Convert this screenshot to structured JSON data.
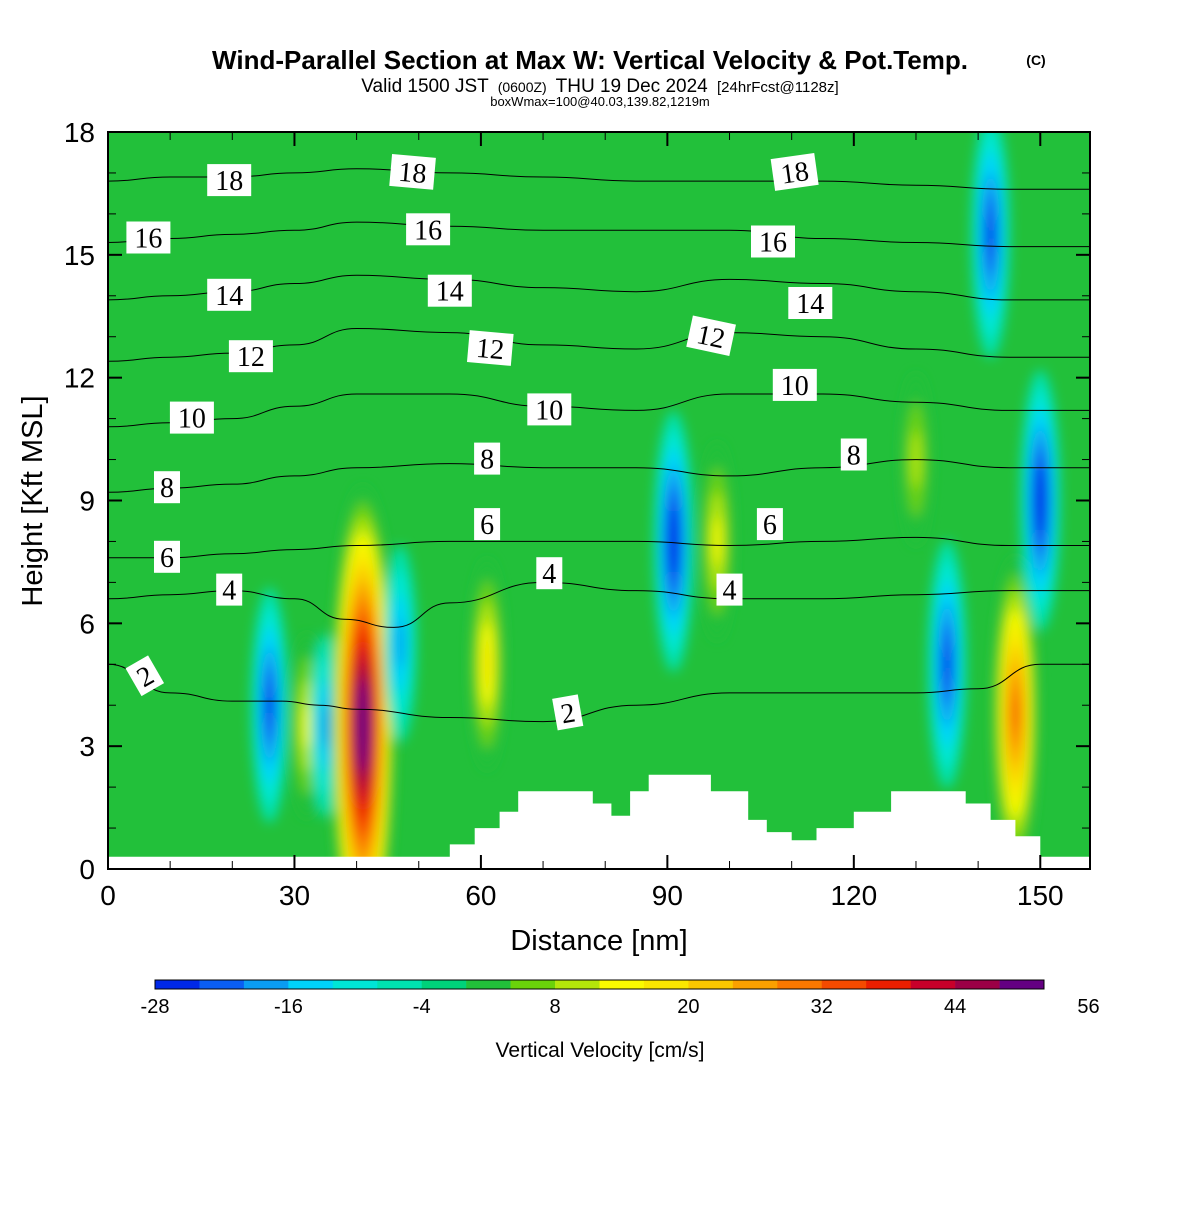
{
  "header": {
    "title": "Wind-Parallel Section at Max W: Vertical Velocity & Pot.Temp.",
    "copyright": "(C)",
    "valid_prefix": "Valid 1500 JST",
    "valid_utc": "(0600Z)",
    "valid_date": "THU 19 Dec 2024",
    "forecast": "[24hrFcst@1128z]",
    "boxwmax": "boxWmax=100@40.03,139.82,1219m"
  },
  "chart_data": {
    "type": "heatmap",
    "xlabel": "Distance [nm]",
    "ylabel": "Height [Kft MSL]",
    "xlim": [
      0,
      158
    ],
    "ylim": [
      0,
      18
    ],
    "xticks": [
      0,
      30,
      60,
      90,
      120,
      150
    ],
    "xtick_labels": [
      "0",
      "30",
      "60",
      "90",
      "120",
      "150"
    ],
    "yticks": [
      0,
      3,
      6,
      9,
      12,
      15,
      18
    ],
    "ytick_labels": [
      "0",
      "3",
      "6",
      "9",
      "12",
      "15",
      "18"
    ],
    "grid": false,
    "background_level_color": "#22c03a",
    "colorbar": {
      "label": "Vertical Velocity [cm/s]",
      "levels_min": -28,
      "levels_step": 4,
      "levels_count": 21,
      "tick_values": [
        -28,
        -16,
        -4,
        8,
        20,
        32,
        44,
        56
      ],
      "tick_labels": [
        "-28",
        "-16",
        "-4",
        "8",
        "20",
        "32",
        "44",
        "56"
      ],
      "colors": [
        "#0028e8",
        "#0a5ef2",
        "#0a9cf2",
        "#00d2fa",
        "#00e6d6",
        "#00e2b0",
        "#00d27a",
        "#22c03a",
        "#6ad20a",
        "#b4e60a",
        "#fafa00",
        "#fae600",
        "#fac800",
        "#faa000",
        "#fa7800",
        "#f54a00",
        "#eb1e00",
        "#c8002a",
        "#9b0046",
        "#640082"
      ]
    },
    "vertical_velocity_features": [
      {
        "x": 26,
        "y": 4.0,
        "value": -18,
        "kind": "downdraft"
      },
      {
        "x": 32,
        "y": 3.5,
        "value": 10,
        "kind": "updraft"
      },
      {
        "x": 35,
        "y": 3.5,
        "value": -10,
        "kind": "downdraft"
      },
      {
        "x": 41,
        "y": 3.5,
        "value": 56,
        "kind": "updraft"
      },
      {
        "x": 47,
        "y": 5.5,
        "value": -12,
        "kind": "downdraft"
      },
      {
        "x": 61,
        "y": 5.0,
        "value": 14,
        "kind": "updraft"
      },
      {
        "x": 91,
        "y": 8.0,
        "value": -22,
        "kind": "downdraft"
      },
      {
        "x": 98,
        "y": 8.0,
        "value": 12,
        "kind": "updraft"
      },
      {
        "x": 142,
        "y": 15.5,
        "value": -20,
        "kind": "downdraft"
      },
      {
        "x": 135,
        "y": 5.0,
        "value": -20,
        "kind": "downdraft"
      },
      {
        "x": 146,
        "y": 3.8,
        "value": 30,
        "kind": "updraft"
      },
      {
        "x": 150,
        "y": 9.0,
        "value": -22,
        "kind": "downdraft"
      },
      {
        "x": 130,
        "y": 10.0,
        "value": 8,
        "kind": "updraft"
      }
    ],
    "terrain": {
      "x": [
        0,
        55,
        55,
        59,
        59,
        63,
        63,
        66,
        66,
        78,
        78,
        81,
        81,
        84,
        84,
        87,
        87,
        97,
        97,
        103,
        103,
        106,
        106,
        110,
        110,
        114,
        114,
        120,
        120,
        126,
        126,
        138,
        138,
        142,
        142,
        146,
        146,
        150,
        150,
        158
      ],
      "y": [
        0.3,
        0.3,
        0.6,
        0.6,
        1.0,
        1.0,
        1.4,
        1.4,
        1.9,
        1.9,
        1.6,
        1.6,
        1.3,
        1.3,
        1.9,
        1.9,
        2.3,
        2.3,
        1.9,
        1.9,
        1.2,
        1.2,
        0.9,
        0.9,
        0.7,
        0.7,
        1.0,
        1.0,
        1.4,
        1.4,
        1.9,
        1.9,
        1.6,
        1.6,
        1.2,
        1.2,
        0.8,
        0.8,
        0.3,
        0.3
      ]
    },
    "potential_temperature_contours": [
      {
        "label": "2",
        "x": [
          0,
          10,
          20,
          28,
          34,
          40,
          55,
          70,
          85,
          100,
          115,
          130,
          140,
          150,
          158
        ],
        "y": [
          5.0,
          4.3,
          4.1,
          4.1,
          4.0,
          3.9,
          3.7,
          3.6,
          4.0,
          4.3,
          4.3,
          4.3,
          4.4,
          5.0,
          5.0
        ]
      },
      {
        "label": "4",
        "x": [
          0,
          10,
          20,
          30,
          38,
          46,
          55,
          70,
          85,
          100,
          115,
          130,
          145,
          158
        ],
        "y": [
          6.6,
          6.7,
          6.8,
          6.6,
          6.1,
          5.9,
          6.5,
          7.0,
          6.8,
          6.6,
          6.6,
          6.7,
          6.8,
          6.8
        ]
      },
      {
        "label": "6",
        "x": [
          0,
          10,
          20,
          30,
          40,
          55,
          70,
          85,
          100,
          115,
          130,
          145,
          158
        ],
        "y": [
          7.6,
          7.6,
          7.7,
          7.8,
          7.9,
          8.0,
          8.0,
          8.0,
          7.9,
          8.0,
          8.1,
          7.9,
          7.9
        ]
      },
      {
        "label": "8",
        "x": [
          0,
          10,
          20,
          30,
          40,
          55,
          70,
          85,
          100,
          115,
          130,
          145,
          158
        ],
        "y": [
          9.2,
          9.3,
          9.4,
          9.6,
          9.8,
          9.9,
          9.8,
          9.8,
          9.6,
          9.8,
          10.0,
          9.8,
          9.8
        ]
      },
      {
        "label": "10",
        "x": [
          0,
          10,
          20,
          30,
          40,
          55,
          70,
          85,
          100,
          115,
          130,
          145,
          158
        ],
        "y": [
          10.8,
          10.9,
          11.0,
          11.3,
          11.6,
          11.6,
          11.3,
          11.2,
          11.6,
          11.6,
          11.4,
          11.2,
          11.2
        ]
      },
      {
        "label": "12",
        "x": [
          0,
          10,
          20,
          30,
          40,
          55,
          70,
          85,
          100,
          115,
          130,
          145,
          158
        ],
        "y": [
          12.4,
          12.5,
          12.6,
          12.8,
          13.2,
          13.1,
          12.8,
          12.7,
          13.1,
          13.0,
          12.7,
          12.5,
          12.5
        ]
      },
      {
        "label": "14",
        "x": [
          0,
          10,
          20,
          30,
          40,
          55,
          70,
          85,
          100,
          115,
          130,
          145,
          158
        ],
        "y": [
          13.9,
          14.0,
          14.1,
          14.3,
          14.5,
          14.4,
          14.2,
          14.1,
          14.4,
          14.3,
          14.1,
          13.9,
          13.9
        ]
      },
      {
        "label": "16",
        "x": [
          0,
          10,
          20,
          30,
          40,
          55,
          70,
          85,
          100,
          115,
          130,
          145,
          158
        ],
        "y": [
          15.3,
          15.4,
          15.5,
          15.6,
          15.8,
          15.7,
          15.6,
          15.6,
          15.6,
          15.4,
          15.3,
          15.2,
          15.2
        ]
      },
      {
        "label": "18",
        "x": [
          0,
          10,
          20,
          30,
          40,
          55,
          70,
          85,
          100,
          115,
          130,
          145,
          158
        ],
        "y": [
          16.8,
          16.9,
          16.9,
          17.0,
          17.1,
          17.0,
          16.9,
          16.8,
          16.8,
          16.8,
          16.7,
          16.6,
          16.6
        ]
      }
    ],
    "contour_labels": [
      {
        "text": "2",
        "x": 6,
        "y": 4.7,
        "angle": -30
      },
      {
        "text": "2",
        "x": 74,
        "y": 3.8,
        "angle": -10
      },
      {
        "text": "4",
        "x": 19.5,
        "y": 6.8,
        "angle": 0
      },
      {
        "text": "4",
        "x": 71,
        "y": 7.2,
        "angle": 0
      },
      {
        "text": "4",
        "x": 100,
        "y": 6.8,
        "angle": 0
      },
      {
        "text": "6",
        "x": 9.5,
        "y": 7.6,
        "angle": 0
      },
      {
        "text": "6",
        "x": 61,
        "y": 8.4,
        "angle": 0
      },
      {
        "text": "6",
        "x": 106.5,
        "y": 8.4,
        "angle": 0
      },
      {
        "text": "8",
        "x": 9.5,
        "y": 9.3,
        "angle": 0
      },
      {
        "text": "8",
        "x": 61,
        "y": 10.0,
        "angle": 0
      },
      {
        "text": "8",
        "x": 120,
        "y": 10.1,
        "angle": 0
      },
      {
        "text": "10",
        "x": 13.5,
        "y": 11.0,
        "angle": 0
      },
      {
        "text": "10",
        "x": 71,
        "y": 11.2,
        "angle": 0
      },
      {
        "text": "10",
        "x": 110.5,
        "y": 11.8,
        "angle": 0
      },
      {
        "text": "12",
        "x": 23,
        "y": 12.5,
        "angle": 0
      },
      {
        "text": "12",
        "x": 61.5,
        "y": 12.7,
        "angle": 5
      },
      {
        "text": "12",
        "x": 97,
        "y": 13.0,
        "angle": 12
      },
      {
        "text": "14",
        "x": 19.5,
        "y": 14.0,
        "angle": 0
      },
      {
        "text": "14",
        "x": 55,
        "y": 14.1,
        "angle": 0
      },
      {
        "text": "14",
        "x": 113,
        "y": 13.8,
        "angle": 0
      },
      {
        "text": "16",
        "x": 6.5,
        "y": 15.4,
        "angle": 0
      },
      {
        "text": "16",
        "x": 51.5,
        "y": 15.6,
        "angle": 0
      },
      {
        "text": "16",
        "x": 107,
        "y": 15.3,
        "angle": 0
      },
      {
        "text": "18",
        "x": 19.5,
        "y": 16.8,
        "angle": 0
      },
      {
        "text": "18",
        "x": 49,
        "y": 17.0,
        "angle": 5
      },
      {
        "text": "18",
        "x": 110.5,
        "y": 17.0,
        "angle": -8
      }
    ]
  }
}
